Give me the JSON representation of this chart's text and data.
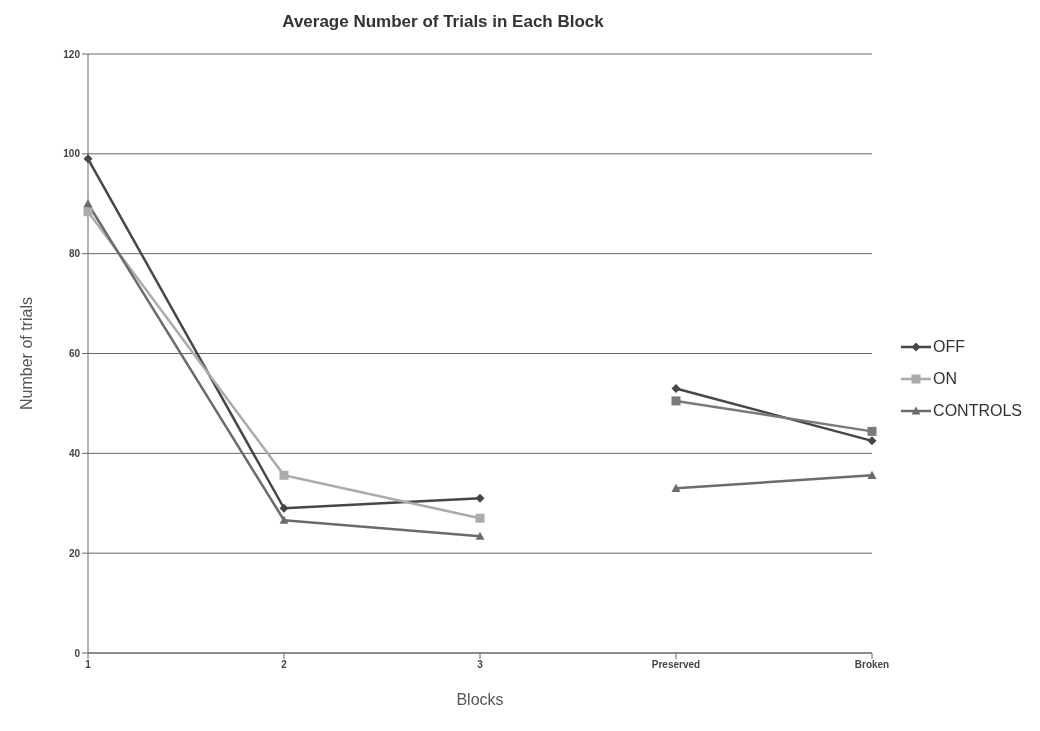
{
  "chart_data": {
    "type": "line",
    "title": "Average Number of Trials in Each Block",
    "xlabel": "Blocks",
    "ylabel": "Number of trials",
    "categories": [
      "1",
      "2",
      "3",
      "Preserved",
      "Broken"
    ],
    "series": [
      {
        "name": "OFF",
        "color": "#474747",
        "marker": "diamond",
        "values": [
          99,
          29,
          31,
          null,
          null
        ]
      },
      {
        "name": "ON",
        "color": "#ababab",
        "marker": "square",
        "values": [
          88.4,
          35.6,
          27,
          null,
          null
        ]
      },
      {
        "name": "CONTROLS",
        "color": "#6b6b6b",
        "marker": "triangle",
        "values": [
          90,
          26.6,
          23.4,
          null,
          null
        ]
      },
      {
        "color": "#474747",
        "marker": "diamond",
        "values": [
          null,
          null,
          null,
          53,
          42.5
        ]
      },
      {
        "color": "#7a7a7a",
        "marker": "square",
        "values": [
          null,
          null,
          null,
          50.5,
          44.4
        ]
      },
      {
        "color": "#6b6b6b",
        "marker": "triangle",
        "values": [
          null,
          null,
          null,
          33,
          35.6
        ]
      }
    ],
    "ylim": [
      0,
      120
    ],
    "yticks": [
      0,
      20,
      40,
      60,
      80,
      100,
      120
    ],
    "grid": "y",
    "legend": "right",
    "line_style": "solid"
  }
}
